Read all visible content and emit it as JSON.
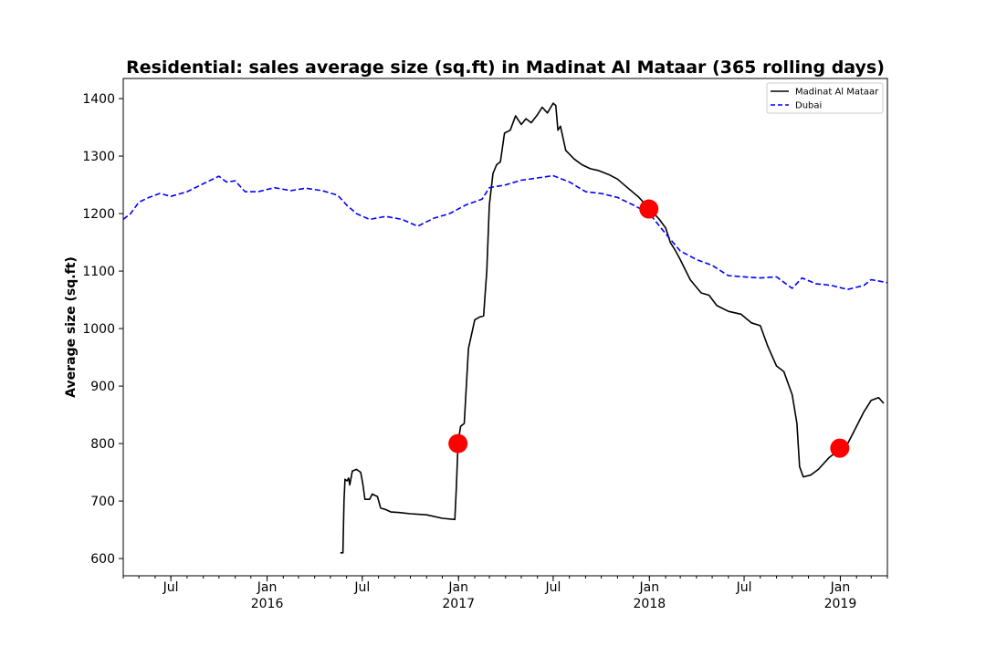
{
  "chart_data": {
    "type": "line",
    "title": "Residential: sales average size (sq.ft) in Madinat Al Mataar (365 rolling days)",
    "ylabel": "Average size (sq.ft)",
    "xlabel": "",
    "xlim": [
      "2015-04-01",
      "2019-04-01"
    ],
    "ylim": [
      570,
      1435
    ],
    "yticks": [
      600,
      700,
      800,
      900,
      1000,
      1100,
      1200,
      1300,
      1400
    ],
    "xticks": [
      {
        "date": "2015-07-01",
        "label": "Jul",
        "year": ""
      },
      {
        "date": "2016-01-01",
        "label": "Jan",
        "year": "2016"
      },
      {
        "date": "2016-07-01",
        "label": "Jul",
        "year": ""
      },
      {
        "date": "2017-01-01",
        "label": "Jan",
        "year": "2017"
      },
      {
        "date": "2017-07-01",
        "label": "Jul",
        "year": ""
      },
      {
        "date": "2018-01-01",
        "label": "Jan",
        "year": "2018"
      },
      {
        "date": "2018-07-01",
        "label": "Jul",
        "year": ""
      },
      {
        "date": "2019-01-01",
        "label": "Jan",
        "year": "2019"
      }
    ],
    "legend_position": "top-right",
    "series": [
      {
        "name": "Madinat Al Mataar",
        "color": "#000000",
        "dash": "solid",
        "points": [
          [
            "2016-05-20",
            610
          ],
          [
            "2016-05-25",
            610
          ],
          [
            "2016-05-27",
            700
          ],
          [
            "2016-05-29",
            738
          ],
          [
            "2016-06-02",
            735
          ],
          [
            "2016-06-05",
            740
          ],
          [
            "2016-06-07",
            728
          ],
          [
            "2016-06-12",
            752
          ],
          [
            "2016-06-20",
            755
          ],
          [
            "2016-06-28",
            750
          ],
          [
            "2016-07-02",
            730
          ],
          [
            "2016-07-06",
            703
          ],
          [
            "2016-07-15",
            703
          ],
          [
            "2016-07-20",
            712
          ],
          [
            "2016-07-30",
            708
          ],
          [
            "2016-08-05",
            688
          ],
          [
            "2016-08-15",
            685
          ],
          [
            "2016-08-25",
            681
          ],
          [
            "2016-09-10",
            680
          ],
          [
            "2016-10-01",
            678
          ],
          [
            "2016-11-01",
            676
          ],
          [
            "2016-12-01",
            670
          ],
          [
            "2016-12-25",
            668
          ],
          [
            "2016-12-28",
            725
          ],
          [
            "2016-12-31",
            800
          ],
          [
            "2017-01-05",
            830
          ],
          [
            "2017-01-12",
            835
          ],
          [
            "2017-01-20",
            965
          ],
          [
            "2017-02-01",
            1015
          ],
          [
            "2017-02-10",
            1020
          ],
          [
            "2017-02-18",
            1022
          ],
          [
            "2017-02-24",
            1100
          ],
          [
            "2017-03-01",
            1215
          ],
          [
            "2017-03-08",
            1270
          ],
          [
            "2017-03-15",
            1285
          ],
          [
            "2017-03-22",
            1290
          ],
          [
            "2017-03-30",
            1340
          ],
          [
            "2017-04-10",
            1345
          ],
          [
            "2017-04-20",
            1370
          ],
          [
            "2017-05-01",
            1355
          ],
          [
            "2017-05-10",
            1365
          ],
          [
            "2017-05-20",
            1358
          ],
          [
            "2017-06-01",
            1372
          ],
          [
            "2017-06-10",
            1385
          ],
          [
            "2017-06-20",
            1375
          ],
          [
            "2017-07-01",
            1392
          ],
          [
            "2017-07-06",
            1388
          ],
          [
            "2017-07-10",
            1345
          ],
          [
            "2017-07-15",
            1352
          ],
          [
            "2017-07-25",
            1310
          ],
          [
            "2017-08-10",
            1295
          ],
          [
            "2017-08-25",
            1285
          ],
          [
            "2017-09-10",
            1278
          ],
          [
            "2017-09-25",
            1275
          ],
          [
            "2017-10-15",
            1268
          ],
          [
            "2017-11-01",
            1260
          ],
          [
            "2017-11-20",
            1245
          ],
          [
            "2017-12-10",
            1230
          ],
          [
            "2017-12-31",
            1210
          ],
          [
            "2018-01-20",
            1190
          ],
          [
            "2018-02-01",
            1175
          ],
          [
            "2018-02-10",
            1150
          ],
          [
            "2018-02-20",
            1135
          ],
          [
            "2018-03-01",
            1120
          ],
          [
            "2018-03-20",
            1085
          ],
          [
            "2018-04-10",
            1062
          ],
          [
            "2018-04-25",
            1058
          ],
          [
            "2018-05-10",
            1040
          ],
          [
            "2018-06-01",
            1030
          ],
          [
            "2018-06-25",
            1025
          ],
          [
            "2018-07-15",
            1010
          ],
          [
            "2018-08-01",
            1005
          ],
          [
            "2018-08-15",
            970
          ],
          [
            "2018-09-01",
            935
          ],
          [
            "2018-09-15",
            925
          ],
          [
            "2018-10-01",
            885
          ],
          [
            "2018-10-10",
            835
          ],
          [
            "2018-10-15",
            760
          ],
          [
            "2018-10-22",
            742
          ],
          [
            "2018-11-05",
            745
          ],
          [
            "2018-11-20",
            755
          ],
          [
            "2018-12-10",
            775
          ],
          [
            "2018-12-31",
            790
          ],
          [
            "2019-01-15",
            800
          ],
          [
            "2019-02-01",
            830
          ],
          [
            "2019-02-15",
            855
          ],
          [
            "2019-03-01",
            875
          ],
          [
            "2019-03-15",
            880
          ],
          [
            "2019-03-25",
            870
          ]
        ]
      },
      {
        "name": "Dubai",
        "color": "#0000ff",
        "dash": "dashed",
        "points": [
          [
            "2015-04-01",
            1190
          ],
          [
            "2015-04-15",
            1200
          ],
          [
            "2015-05-01",
            1220
          ],
          [
            "2015-05-20",
            1228
          ],
          [
            "2015-06-10",
            1235
          ],
          [
            "2015-07-01",
            1230
          ],
          [
            "2015-08-01",
            1238
          ],
          [
            "2015-09-01",
            1252
          ],
          [
            "2015-10-01",
            1265
          ],
          [
            "2015-10-15",
            1255
          ],
          [
            "2015-11-01",
            1257
          ],
          [
            "2015-11-20",
            1238
          ],
          [
            "2015-12-15",
            1238
          ],
          [
            "2016-01-15",
            1245
          ],
          [
            "2016-02-15",
            1240
          ],
          [
            "2016-03-15",
            1244
          ],
          [
            "2016-04-15",
            1240
          ],
          [
            "2016-05-15",
            1232
          ],
          [
            "2016-06-01",
            1215
          ],
          [
            "2016-06-20",
            1200
          ],
          [
            "2016-07-15",
            1190
          ],
          [
            "2016-08-15",
            1195
          ],
          [
            "2016-09-15",
            1190
          ],
          [
            "2016-10-15",
            1178
          ],
          [
            "2016-11-15",
            1192
          ],
          [
            "2016-12-15",
            1200
          ],
          [
            "2017-01-15",
            1215
          ],
          [
            "2017-02-15",
            1225
          ],
          [
            "2017-03-01",
            1245
          ],
          [
            "2017-04-01",
            1250
          ],
          [
            "2017-05-01",
            1258
          ],
          [
            "2017-06-01",
            1262
          ],
          [
            "2017-07-01",
            1266
          ],
          [
            "2017-08-01",
            1255
          ],
          [
            "2017-09-01",
            1238
          ],
          [
            "2017-10-01",
            1235
          ],
          [
            "2017-11-01",
            1228
          ],
          [
            "2017-12-01",
            1215
          ],
          [
            "2018-01-01",
            1200
          ],
          [
            "2018-02-01",
            1165
          ],
          [
            "2018-03-01",
            1135
          ],
          [
            "2018-04-01",
            1120
          ],
          [
            "2018-05-01",
            1110
          ],
          [
            "2018-06-01",
            1092
          ],
          [
            "2018-07-01",
            1090
          ],
          [
            "2018-08-01",
            1088
          ],
          [
            "2018-09-01",
            1090
          ],
          [
            "2018-10-01",
            1070
          ],
          [
            "2018-10-20",
            1088
          ],
          [
            "2018-11-15",
            1078
          ],
          [
            "2018-12-15",
            1075
          ],
          [
            "2019-01-15",
            1068
          ],
          [
            "2019-02-15",
            1075
          ],
          [
            "2019-03-01",
            1085
          ],
          [
            "2019-04-01",
            1080
          ]
        ]
      }
    ],
    "markers": {
      "color": "#ff0000",
      "points": [
        [
          "2016-12-31",
          800
        ],
        [
          "2017-12-31",
          1208
        ],
        [
          "2018-12-31",
          792
        ]
      ]
    }
  }
}
